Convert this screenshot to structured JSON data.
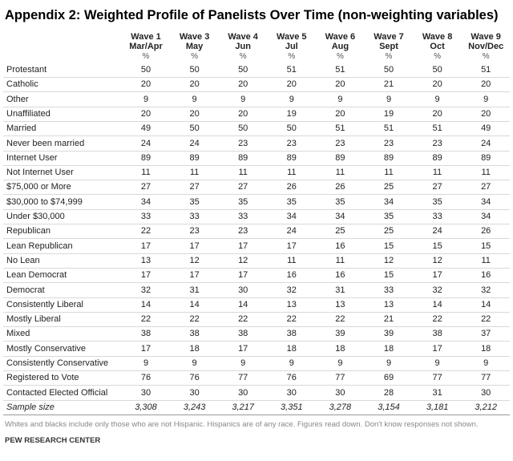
{
  "title": "Appendix 2: Weighted Profile of Panelists Over Time (non-weighting variables)",
  "table": {
    "columns": [
      {
        "wave": "Wave 1",
        "period": "Mar/Apr",
        "unit": "%"
      },
      {
        "wave": "Wave 3",
        "period": "May",
        "unit": "%"
      },
      {
        "wave": "Wave 4",
        "period": "Jun",
        "unit": "%"
      },
      {
        "wave": "Wave 5",
        "period": "Jul",
        "unit": "%"
      },
      {
        "wave": "Wave 6",
        "period": "Aug",
        "unit": "%"
      },
      {
        "wave": "Wave 7",
        "period": "Sept",
        "unit": "%"
      },
      {
        "wave": "Wave 8",
        "period": "Oct",
        "unit": "%"
      },
      {
        "wave": "Wave 9",
        "period": "Nov/Dec",
        "unit": "%"
      }
    ],
    "rows": [
      {
        "label": "Protestant",
        "values": [
          50,
          50,
          50,
          51,
          51,
          50,
          50,
          51
        ]
      },
      {
        "label": "Catholic",
        "values": [
          20,
          20,
          20,
          20,
          20,
          21,
          20,
          20
        ]
      },
      {
        "label": "Other",
        "values": [
          9,
          9,
          9,
          9,
          9,
          9,
          9,
          9
        ]
      },
      {
        "label": "Unaffiliated",
        "values": [
          20,
          20,
          20,
          19,
          20,
          19,
          20,
          20
        ]
      },
      {
        "label": "Married",
        "values": [
          49,
          50,
          50,
          50,
          51,
          51,
          51,
          49
        ]
      },
      {
        "label": "Never been married",
        "values": [
          24,
          24,
          23,
          23,
          23,
          23,
          23,
          24
        ]
      },
      {
        "label": "Internet User",
        "values": [
          89,
          89,
          89,
          89,
          89,
          89,
          89,
          89
        ]
      },
      {
        "label": "Not Internet User",
        "values": [
          11,
          11,
          11,
          11,
          11,
          11,
          11,
          11
        ]
      },
      {
        "label": "$75,000 or More",
        "values": [
          27,
          27,
          27,
          26,
          26,
          25,
          27,
          27
        ]
      },
      {
        "label": "$30,000 to $74,999",
        "values": [
          34,
          35,
          35,
          35,
          35,
          34,
          35,
          34
        ]
      },
      {
        "label": "Under $30,000",
        "values": [
          33,
          33,
          33,
          34,
          34,
          35,
          33,
          34
        ]
      },
      {
        "label": "Republican",
        "values": [
          22,
          23,
          23,
          24,
          25,
          25,
          24,
          26
        ]
      },
      {
        "label": "Lean Republican",
        "values": [
          17,
          17,
          17,
          17,
          16,
          15,
          15,
          15
        ]
      },
      {
        "label": "No Lean",
        "values": [
          13,
          12,
          12,
          11,
          11,
          12,
          12,
          11
        ]
      },
      {
        "label": "Lean Democrat",
        "values": [
          17,
          17,
          17,
          16,
          16,
          15,
          17,
          16
        ]
      },
      {
        "label": "Democrat",
        "values": [
          32,
          31,
          30,
          32,
          31,
          33,
          32,
          32
        ]
      },
      {
        "label": "Consistently Liberal",
        "values": [
          14,
          14,
          14,
          13,
          13,
          13,
          14,
          14
        ]
      },
      {
        "label": "Mostly Liberal",
        "values": [
          22,
          22,
          22,
          22,
          22,
          21,
          22,
          22
        ]
      },
      {
        "label": "Mixed",
        "values": [
          38,
          38,
          38,
          38,
          39,
          39,
          38,
          37
        ]
      },
      {
        "label": "Mostly Conservative",
        "values": [
          17,
          18,
          17,
          18,
          18,
          18,
          17,
          18
        ]
      },
      {
        "label": "Consistently Conservative",
        "values": [
          9,
          9,
          9,
          9,
          9,
          9,
          9,
          9
        ]
      },
      {
        "label": "Registered to Vote",
        "values": [
          76,
          76,
          77,
          76,
          77,
          69,
          77,
          77
        ]
      },
      {
        "label": "Contacted Elected Official",
        "values": [
          30,
          30,
          30,
          30,
          30,
          28,
          31,
          30
        ]
      },
      {
        "label": "Sample size",
        "values": [
          "3,308",
          "3,243",
          "3,217",
          "3,351",
          "3,278",
          "3,154",
          "3,181",
          "3,212"
        ]
      }
    ]
  },
  "footnote": "Whites and blacks include only those who are not Hispanic. Hispanics are of any race. Figures read down. Don't know responses not shown.",
  "source": "PEW RESEARCH CENTER"
}
